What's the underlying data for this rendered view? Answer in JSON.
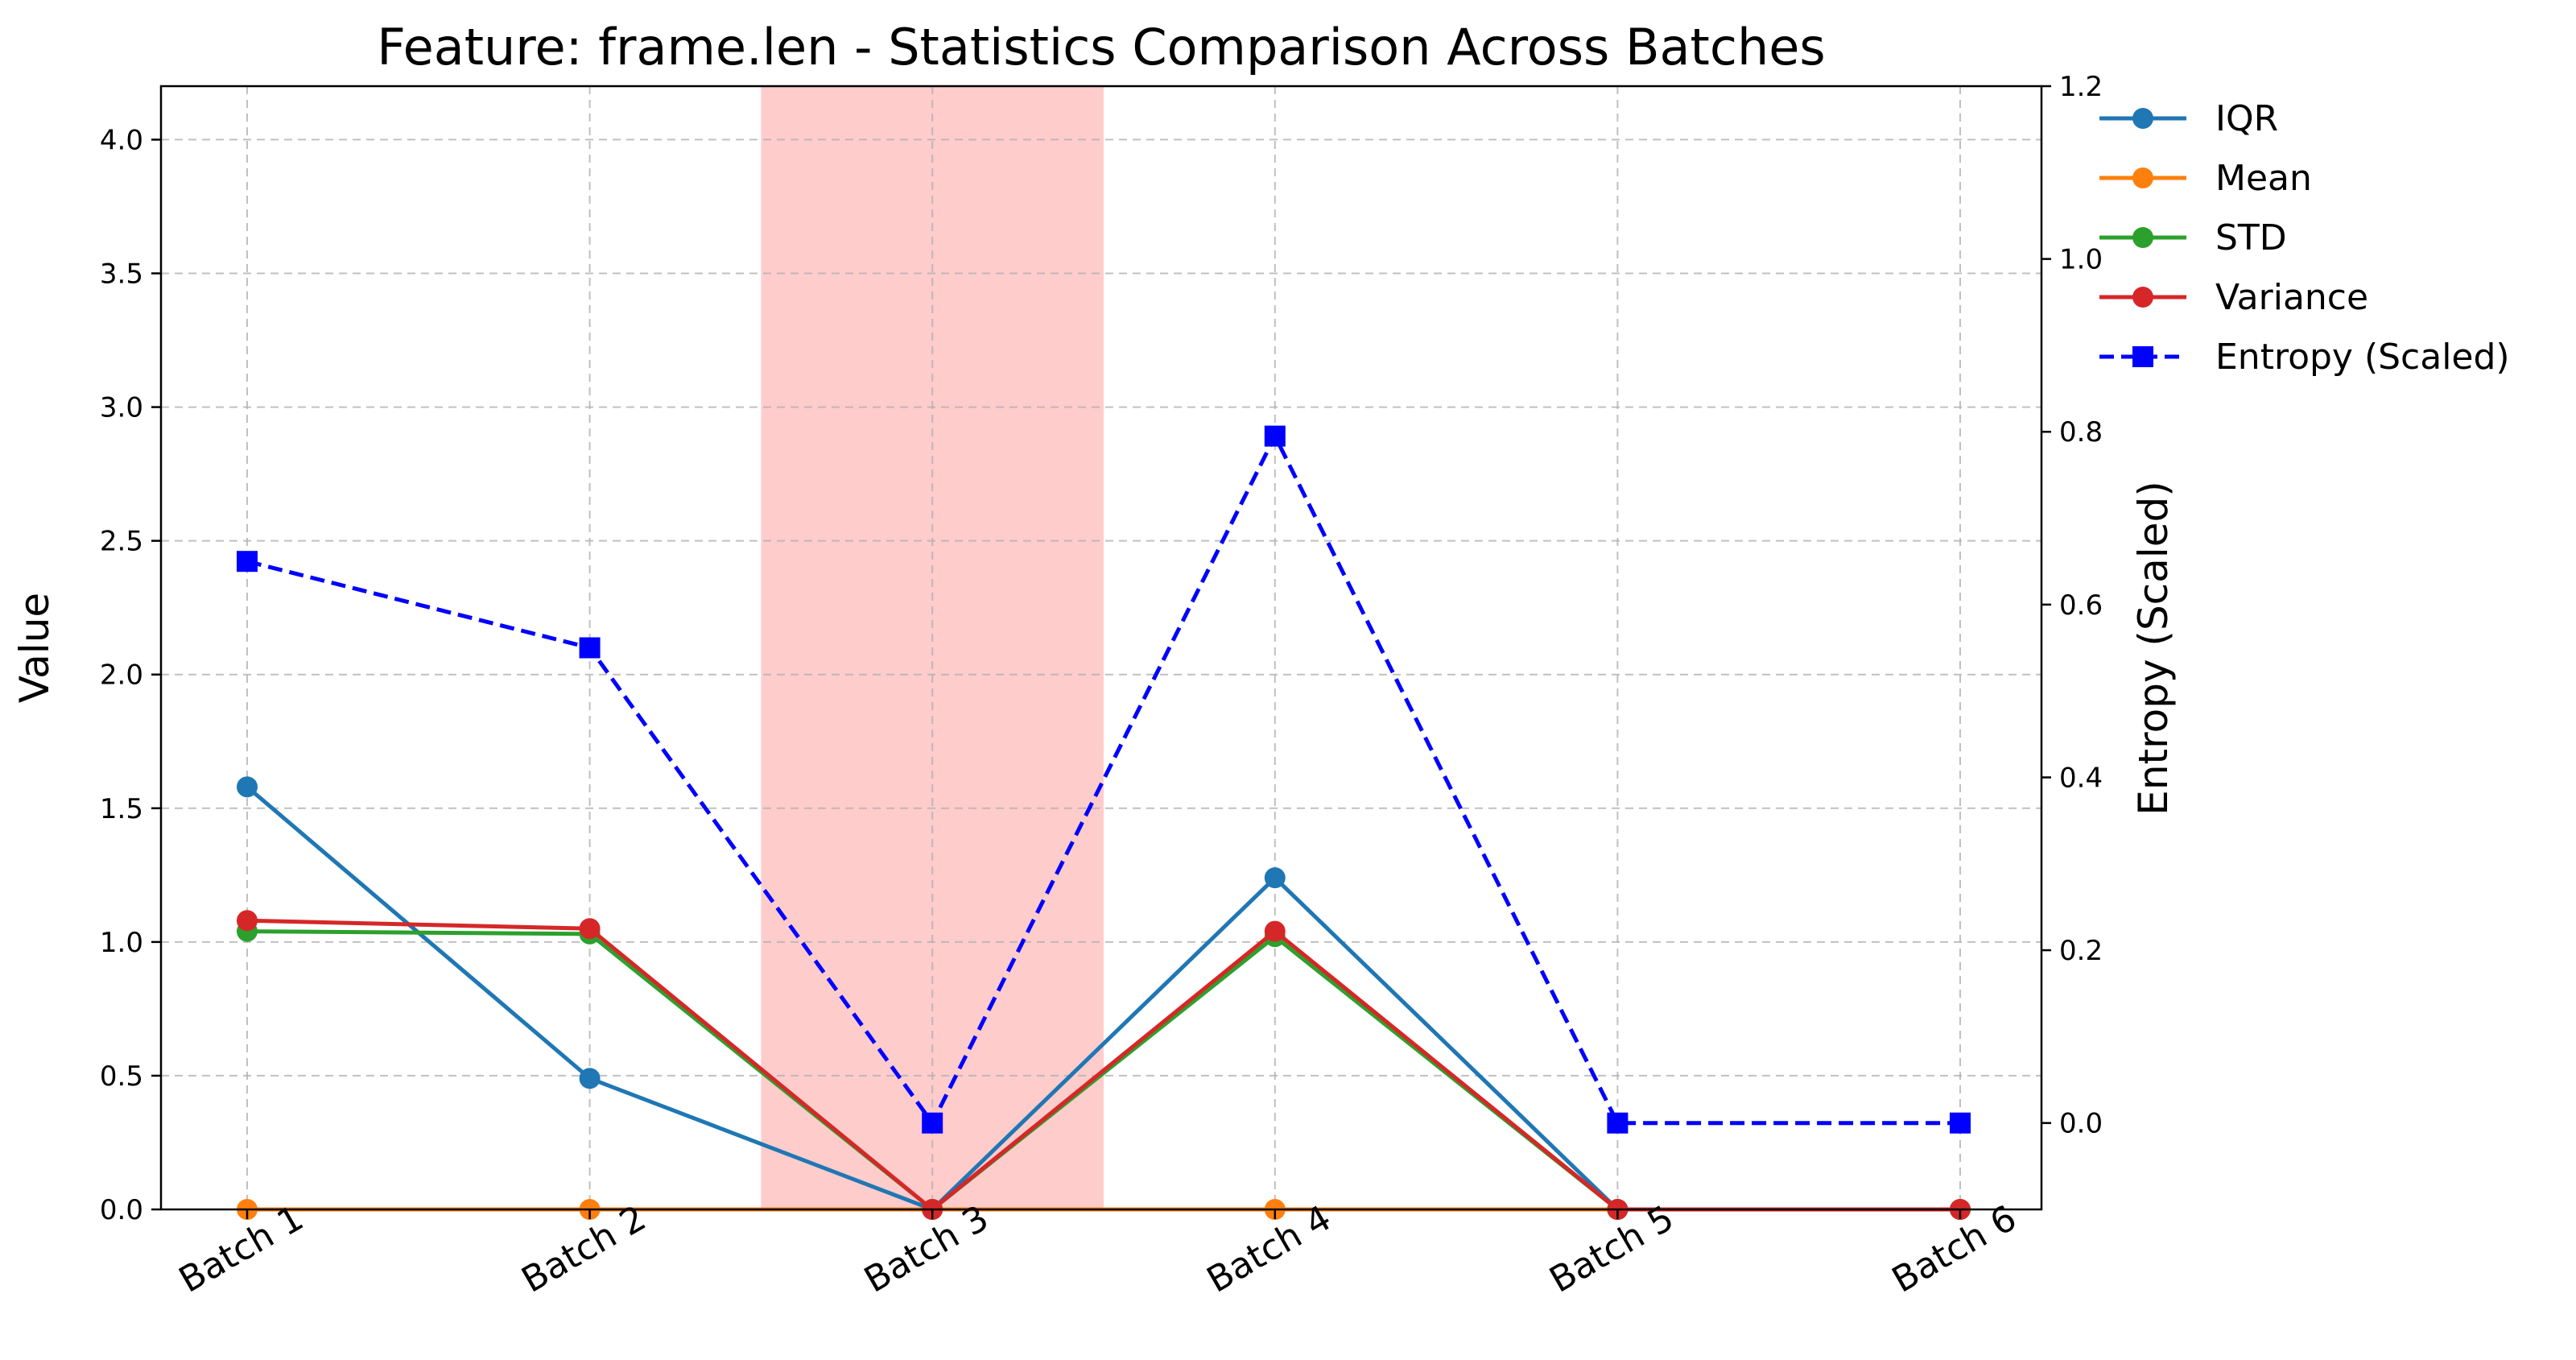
{
  "chart_data": {
    "type": "line",
    "title": "Feature: frame.len - Statistics Comparison Across Batches",
    "categories": [
      "Batch 1",
      "Batch 2",
      "Batch 3",
      "Batch 4",
      "Batch 5",
      "Batch 6"
    ],
    "ylabel": "Value",
    "ylim": [
      0,
      4.2
    ],
    "yticks": [
      "0.0",
      "0.5",
      "1.0",
      "1.5",
      "2.0",
      "2.5",
      "3.0",
      "3.5",
      "4.0"
    ],
    "y2label": "Entropy (Scaled)",
    "y2lim": [
      -0.1,
      1.2
    ],
    "y2ticks": [
      "0.0",
      "0.2",
      "0.4",
      "0.6",
      "0.8",
      "1.0",
      "1.2"
    ],
    "grid": true,
    "legend_position": "outside-top-right",
    "highlight_category": "Batch 3",
    "highlight_color": "#ff9a9a",
    "series": [
      {
        "name": "IQR",
        "values": [
          1.58,
          0.49,
          0.0,
          1.24,
          0.0,
          0.0
        ],
        "color": "#1f77b4",
        "marker": "circle",
        "style": "solid",
        "axis": "left"
      },
      {
        "name": "Mean",
        "values": [
          0.0,
          0.0,
          0.0,
          0.0,
          0.0,
          0.0
        ],
        "color": "#ff7f0e",
        "marker": "circle",
        "style": "solid",
        "axis": "left"
      },
      {
        "name": "STD",
        "values": [
          1.04,
          1.03,
          0.0,
          1.02,
          0.0,
          0.0
        ],
        "color": "#2ca02c",
        "marker": "circle",
        "style": "solid",
        "axis": "left"
      },
      {
        "name": "Variance",
        "values": [
          1.08,
          1.05,
          0.0,
          1.04,
          0.0,
          0.0
        ],
        "color": "#d62728",
        "marker": "circle",
        "style": "solid",
        "axis": "left"
      },
      {
        "name": "Entropy (Scaled)",
        "values": [
          0.65,
          0.55,
          0.0,
          0.795,
          0.0,
          0.0
        ],
        "color": "#0000ff",
        "marker": "square",
        "style": "dashed",
        "axis": "right"
      }
    ]
  }
}
